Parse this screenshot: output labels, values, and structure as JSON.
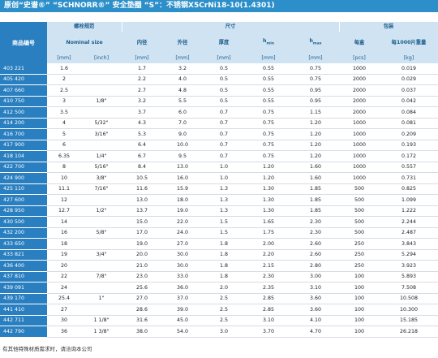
{
  "title": "原创“史谱®” “SCHNORR®” 安全垫圈 “S”：不锈钢X5CrNi18-10(1.4301)",
  "header": {
    "id": "商品编号",
    "groups": [
      "螺栓规范",
      "尺寸",
      "包装"
    ],
    "nominal": "Nominal size",
    "columns": [
      "内径",
      "外径",
      "厚度",
      {
        "main": "h",
        "sub": "min"
      },
      {
        "main": "h",
        "sub": "max"
      },
      "每盒",
      "每1000片重量"
    ],
    "units": [
      "[mm]",
      "[inch]",
      "[mm]",
      "[mm]",
      "[mm]",
      "[mm]",
      "[mm]",
      "[pcs]",
      "[kg]"
    ]
  },
  "rows": [
    [
      "403 221",
      "1.6",
      null,
      "1.7",
      "3.2",
      "0.5",
      "0.55",
      "0.75",
      "1000",
      "0.019"
    ],
    [
      "405 420",
      "2",
      null,
      "2.2",
      "4.0",
      "0.5",
      "0.55",
      "0.75",
      "2000",
      "0.029"
    ],
    [
      "407 660",
      "2.5",
      null,
      "2.7",
      "4.8",
      "0.5",
      "0.55",
      "0.95",
      "2000",
      "0.037"
    ],
    [
      "410 750",
      "3",
      "1/8\"",
      "3.2",
      "5.5",
      "0.5",
      "0.55",
      "0.95",
      "2000",
      "0.042"
    ],
    [
      "412 500",
      "3.5",
      null,
      "3.7",
      "6.0",
      "0.7",
      "0.75",
      "1.15",
      "2000",
      "0.084"
    ],
    [
      "414 200",
      "4",
      "5/32\"",
      "4.3",
      "7.0",
      "0.7",
      "0.75",
      "1.20",
      "1000",
      "0.081"
    ],
    [
      "416 700",
      "5",
      "3/16\"",
      "5.3",
      "9.0",
      "0.7",
      "0.75",
      "1.20",
      "1000",
      "0.209"
    ],
    [
      "417 900",
      "6",
      null,
      "6.4",
      "10.0",
      "0.7",
      "0.75",
      "1.20",
      "1000",
      "0.193"
    ],
    [
      "418 104",
      "6.35",
      "1/4\"",
      "6.7",
      "9.5",
      "0.7",
      "0.75",
      "1.20",
      "1000",
      "0.172"
    ],
    [
      "422 700",
      "8",
      "5/16\"",
      "8.4",
      "13.0",
      "1.0",
      "1.20",
      "1.60",
      "1000",
      "0.557"
    ],
    [
      "424 900",
      "10",
      "3/8\"",
      "10.5",
      "16.0",
      "1.0",
      "1.20",
      "1.60",
      "1000",
      "0.731"
    ],
    [
      "425 110",
      "11.1",
      "7/16\"",
      "11.6",
      "15.9",
      "1.3",
      "1.30",
      "1.85",
      "500",
      "0.825"
    ],
    [
      "427 600",
      "12",
      null,
      "13.0",
      "18.0",
      "1.3",
      "1.30",
      "1.85",
      "500",
      "1.099"
    ],
    [
      "428 950",
      "12.7",
      "1/2\"",
      "13.7",
      "19.0",
      "1.3",
      "1.30",
      "1.85",
      "500",
      "1.222"
    ],
    [
      "430 500",
      "14",
      null,
      "15.0",
      "22.0",
      "1.5",
      "1.65",
      "2.30",
      "500",
      "2.244"
    ],
    [
      "432 200",
      "16",
      "5/8\"",
      "17.0",
      "24.0",
      "1.5",
      "1.75",
      "2.30",
      "500",
      "2.487"
    ],
    [
      "433 650",
      "18",
      null,
      "19.0",
      "27.0",
      "1.8",
      "2.00",
      "2.60",
      "250",
      "3.843"
    ],
    [
      "433 821",
      "19",
      "3/4\"",
      "20.0",
      "30.0",
      "1.8",
      "2.20",
      "2.60",
      "250",
      "5.294"
    ],
    [
      "436 400",
      "20",
      null,
      "21.0",
      "30.0",
      "1.8",
      "2.15",
      "2.80",
      "250",
      "3.923"
    ],
    [
      "437 810",
      "22",
      "7/8\"",
      "23.0",
      "33.0",
      "1.8",
      "2.30",
      "3.00",
      "100",
      "5.893"
    ],
    [
      "439 091",
      "24",
      null,
      "25.6",
      "36.0",
      "2.0",
      "2.35",
      "3.10",
      "100",
      "7.508"
    ],
    [
      "439 170",
      "25.4",
      "1\"",
      "27.0",
      "37.0",
      "2.5",
      "2.85",
      "3.60",
      "100",
      "10.508"
    ],
    [
      "441 410",
      "27",
      null,
      "28.6",
      "39.0",
      "2.5",
      "2.85",
      "3.60",
      "100",
      "10.300"
    ],
    [
      "442 711",
      "30",
      "1 1/8\"",
      "31.6",
      "45.0",
      "2.5",
      "3.10",
      "4.10",
      "100",
      "15.185"
    ],
    [
      "442 790",
      "36",
      "1 3/8\"",
      "38.0",
      "54.0",
      "3.0",
      "3.70",
      "4.70",
      "100",
      "26.218"
    ]
  ],
  "footer": "有其他特殊材质需求时，请洽询本公司"
}
